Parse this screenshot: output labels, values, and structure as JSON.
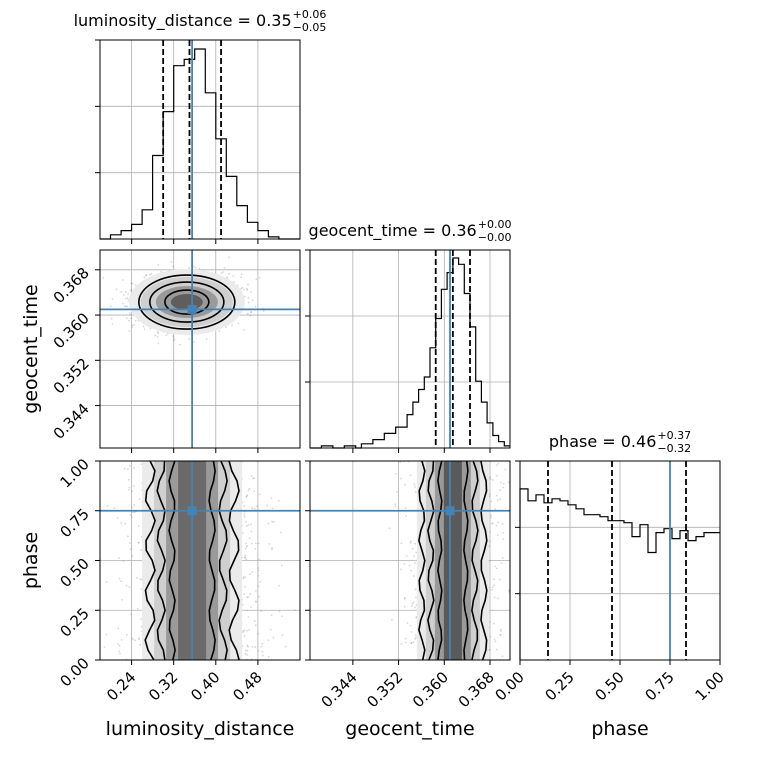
{
  "chart_data": {
    "type": "corner",
    "parameters": [
      "luminosity_distance",
      "geocent_time",
      "phase"
    ],
    "truths": {
      "luminosity_distance": 0.355,
      "geocent_time": 0.361,
      "phase": 0.75
    },
    "truth_color": "#4682b4",
    "titles": [
      {
        "param": "luminosity_distance",
        "prefix": "luminosity_distance = 0.35",
        "sup": "+0.06",
        "sub": "−0.05"
      },
      {
        "param": "geocent_time",
        "prefix": "geocent_time = 0.36",
        "sup": "+0.00",
        "sub": "−0.00"
      },
      {
        "param": "phase",
        "prefix": "phase = 0.46",
        "sup": "+0.37",
        "sub": "−0.32"
      }
    ],
    "axis_labels": {
      "x": [
        "luminosity_distance",
        "geocent_time",
        "phase"
      ],
      "y": [
        "geocent_time",
        "phase"
      ]
    },
    "ranges": {
      "luminosity_distance": [
        0.18,
        0.56
      ],
      "geocent_time": [
        0.3365,
        0.3715
      ],
      "phase": [
        0.0,
        1.0
      ]
    },
    "ticks": {
      "luminosity_distance": [
        "0.24",
        "0.32",
        "0.40",
        "0.48"
      ],
      "geocent_time": [
        "0.344",
        "0.352",
        "0.360",
        "0.368"
      ],
      "phase": [
        "0.00",
        "0.25",
        "0.50",
        "0.75",
        "1.00"
      ]
    },
    "quantiles": {
      "luminosity_distance": [
        0.3,
        0.35,
        0.41
      ],
      "geocent_time": [
        0.3585,
        0.3615,
        0.3645
      ],
      "phase": [
        0.14,
        0.46,
        0.83
      ]
    },
    "histograms": {
      "luminosity_distance": {
        "edges": [
          0.18,
          0.19,
          0.2,
          0.21,
          0.22,
          0.23,
          0.24,
          0.25,
          0.26,
          0.27,
          0.28,
          0.29,
          0.3,
          0.31,
          0.32,
          0.33,
          0.34,
          0.35,
          0.36,
          0.37,
          0.38,
          0.39,
          0.4,
          0.41,
          0.42,
          0.43,
          0.44,
          0.45,
          0.46,
          0.47,
          0.48,
          0.49,
          0.5,
          0.51,
          0.52,
          0.53,
          0.54,
          0.55,
          0.56
        ],
        "counts": [
          0,
          0,
          2,
          2,
          4,
          4,
          7,
          7,
          14,
          14,
          40,
          40,
          61,
          61,
          83,
          83,
          86,
          86,
          91,
          91,
          70,
          70,
          48,
          48,
          30,
          30,
          16,
          16,
          8,
          8,
          4,
          4,
          1,
          1,
          0,
          0,
          0,
          0
        ]
      },
      "geocent_time": {
        "edges": [
          0.3365,
          0.3375,
          0.3385,
          0.3395,
          0.3405,
          0.3415,
          0.3425,
          0.3435,
          0.3445,
          0.3455,
          0.3465,
          0.3475,
          0.3485,
          0.3495,
          0.3505,
          0.3515,
          0.3525,
          0.3535,
          0.3545,
          0.3555,
          0.3565,
          0.3575,
          0.3585,
          0.3595,
          0.3605,
          0.3615,
          0.3625,
          0.3635,
          0.3645,
          0.3655,
          0.3665,
          0.3675,
          0.3685,
          0.3695,
          0.3705,
          0.3715
        ],
        "counts": [
          0,
          0,
          1,
          1,
          0,
          0,
          1,
          1,
          0,
          2,
          2,
          4,
          4,
          7,
          7,
          10,
          10,
          16,
          22,
          28,
          34,
          48,
          62,
          76,
          84,
          91,
          88,
          74,
          58,
          32,
          22,
          12,
          6,
          3,
          1
        ]
      },
      "phase": {
        "edges": [
          0.0,
          0.04,
          0.08,
          0.12,
          0.16,
          0.2,
          0.24,
          0.28,
          0.32,
          0.36,
          0.4,
          0.44,
          0.48,
          0.52,
          0.56,
          0.6,
          0.64,
          0.68,
          0.72,
          0.76,
          0.8,
          0.84,
          0.88,
          0.92,
          0.96,
          1.0
        ],
        "counts": [
          86,
          80,
          83,
          79,
          81,
          80,
          78,
          76,
          73,
          73,
          72,
          70,
          70,
          69,
          62,
          68,
          54,
          64,
          66,
          61,
          65,
          60,
          62,
          64,
          64
        ],
        "ylim": [
          0,
          100
        ]
      }
    },
    "density_2d": {
      "geocent_time_vs_luminosity_distance": {
        "center": [
          0.345,
          0.3623
        ],
        "contour_levels": 4
      },
      "phase_vs_luminosity_distance": {
        "x_center": 0.355,
        "contour_levels": 4
      },
      "phase_vs_geocent_time": {
        "x_center": 0.3615,
        "contour_levels": 4
      }
    },
    "grid": true
  }
}
